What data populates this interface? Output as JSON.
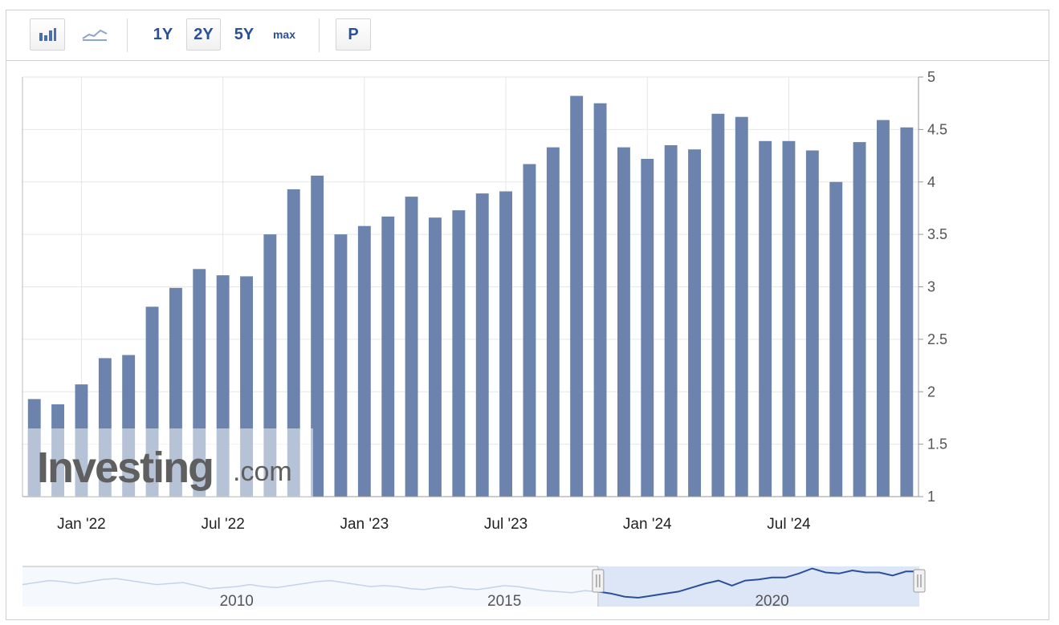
{
  "toolbar": {
    "chart_type_buttons": [
      {
        "icon": "bar-chart-icon",
        "selected": true
      },
      {
        "icon": "line-chart-icon",
        "selected": false
      }
    ],
    "range_buttons": [
      {
        "label": "1Y",
        "selected": false
      },
      {
        "label": "2Y",
        "selected": true
      },
      {
        "label": "5Y",
        "selected": false
      },
      {
        "label": "max",
        "selected": false
      }
    ],
    "popout_label": "P"
  },
  "watermark": {
    "brand": "Investing",
    "suffix": ".com"
  },
  "colors": {
    "bar": "#6c84ad",
    "grid": "#e6e6e6",
    "axis_text": "#555555",
    "navigator_line": "#2a4f9a",
    "navigator_fill": "#dde6f7",
    "navigator_mask": "#f5f8fd",
    "toolbar_text": "#2a5099"
  },
  "chart_data": [
    {
      "type": "bar",
      "series": [
        {
          "values": [
            1.93,
            1.88,
            2.07,
            2.32,
            2.35,
            2.81,
            2.99,
            3.17,
            3.11,
            3.1,
            3.5,
            3.93,
            4.06,
            3.5,
            3.58,
            3.67,
            3.86,
            3.66,
            3.73,
            3.89,
            3.91,
            4.17,
            4.33,
            4.82,
            4.75,
            4.33,
            4.22,
            4.35,
            4.31,
            4.65,
            4.62,
            4.39,
            4.39,
            4.3,
            4.0,
            4.38,
            4.59,
            4.52
          ]
        }
      ],
      "x_tick_labels": [
        "Jan '22",
        "Jul '22",
        "Jan '23",
        "Jul '23",
        "Jan '24",
        "Jul '24"
      ],
      "y_tick_labels": [
        "1",
        "1.5",
        "2",
        "2.5",
        "3",
        "3.5",
        "4",
        "4.5",
        "5"
      ],
      "ylim": [
        1,
        5
      ],
      "y_axis_side": "right",
      "grid": true
    },
    {
      "type": "area",
      "role": "navigator",
      "x_tick_labels": [
        "2010",
        "2015",
        "2020"
      ],
      "series": [
        {
          "values": [
            3.2,
            3.4,
            3.6,
            3.5,
            3.3,
            3.5,
            3.7,
            3.8,
            3.6,
            3.4,
            3.2,
            3.3,
            3.4,
            3.1,
            2.8,
            2.9,
            3.0,
            3.2,
            3.0,
            2.9,
            3.1,
            3.3,
            3.5,
            3.6,
            3.4,
            3.2,
            3.0,
            3.1,
            3.0,
            2.8,
            2.7,
            2.9,
            3.0,
            2.8,
            2.7,
            2.9,
            3.1,
            3.0,
            2.8,
            2.6,
            2.5,
            2.4,
            2.6,
            2.5,
            2.3,
            2.0,
            1.9,
            2.1,
            2.3,
            2.5,
            2.9,
            3.3,
            3.6,
            3.1,
            3.6,
            3.7,
            3.9,
            3.9,
            4.3,
            4.8,
            4.4,
            4.3,
            4.6,
            4.4,
            4.4,
            4.1,
            4.5,
            4.5
          ]
        }
      ],
      "selected_range_words": "last 2 years"
    }
  ]
}
